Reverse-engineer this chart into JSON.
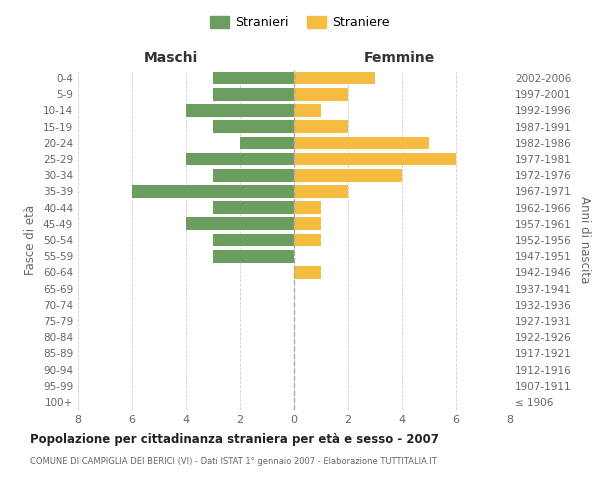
{
  "age_groups": [
    "100+",
    "95-99",
    "90-94",
    "85-89",
    "80-84",
    "75-79",
    "70-74",
    "65-69",
    "60-64",
    "55-59",
    "50-54",
    "45-49",
    "40-44",
    "35-39",
    "30-34",
    "25-29",
    "20-24",
    "15-19",
    "10-14",
    "5-9",
    "0-4"
  ],
  "birth_years": [
    "≤ 1906",
    "1907-1911",
    "1912-1916",
    "1917-1921",
    "1922-1926",
    "1927-1931",
    "1932-1936",
    "1937-1941",
    "1942-1946",
    "1947-1951",
    "1952-1956",
    "1957-1961",
    "1962-1966",
    "1967-1971",
    "1972-1976",
    "1977-1981",
    "1982-1986",
    "1987-1991",
    "1992-1996",
    "1997-2001",
    "2002-2006"
  ],
  "males": [
    0,
    0,
    0,
    0,
    0,
    0,
    0,
    0,
    0,
    3,
    3,
    4,
    3,
    6,
    3,
    4,
    2,
    3,
    4,
    3,
    3
  ],
  "females": [
    0,
    0,
    0,
    0,
    0,
    0,
    0,
    0,
    1,
    0,
    1,
    1,
    1,
    2,
    4,
    6,
    5,
    2,
    1,
    2,
    3
  ],
  "male_color": "#6b9e5e",
  "female_color": "#f5bc42",
  "title": "Popolazione per cittadinanza straniera per età e sesso - 2007",
  "subtitle": "COMUNE DI CAMPIGLIA DEI BERICI (VI) - Dati ISTAT 1° gennaio 2007 - Elaborazione TUTTITALIA.IT",
  "xlabel_left": "Maschi",
  "xlabel_right": "Femmine",
  "ylabel_left": "Fasce di età",
  "ylabel_right": "Anni di nascita",
  "legend_male": "Stranieri",
  "legend_female": "Straniere",
  "xlim": 8,
  "background_color": "#ffffff",
  "grid_color": "#cccccc",
  "text_color": "#666666"
}
